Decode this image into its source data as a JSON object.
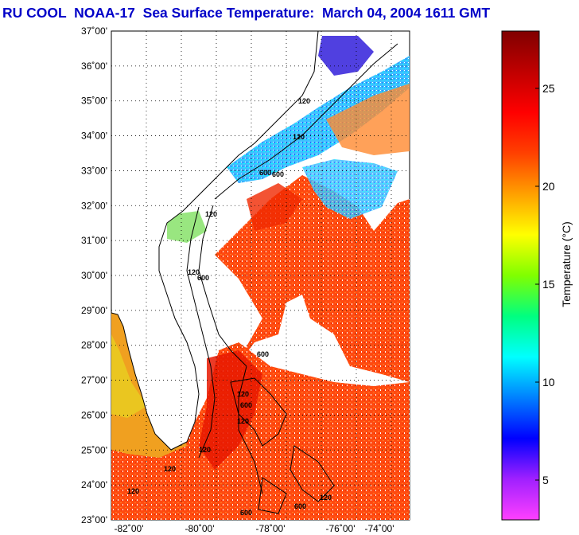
{
  "title": "RU COOL  NOAA-17  Sea Surface Temperature:  March 04, 2004 1611 GMT",
  "title_color": "#0000c8",
  "map": {
    "lat_labels": [
      "37˚00'",
      "36˚00'",
      "35˚00'",
      "34˚00'",
      "33˚00'",
      "32˚00'",
      "31˚00'",
      "30˚00'",
      "29˚00'",
      "28˚00'",
      "27˚00'",
      "26˚00'",
      "25˚00'",
      "24˚00'",
      "23˚00'"
    ],
    "lon_labels": [
      "-82˚00'",
      "-80˚00'",
      "-78˚00'",
      "-76˚00'",
      "-74˚00'"
    ],
    "contour_labels": [
      "120",
      "600",
      "120",
      "600",
      "120",
      "120",
      "600",
      "120",
      "600",
      "600",
      "120",
      "120",
      "120",
      "600",
      "120",
      "600",
      "120"
    ]
  },
  "colorbar": {
    "label": "Temperature (°C)",
    "tick_labels": [
      "25",
      "20",
      "15",
      "10",
      "5"
    ],
    "colors": [
      "#ff40ff",
      "#a020ff",
      "#0000ff",
      "#0080ff",
      "#00ffff",
      "#00ff80",
      "#80ff00",
      "#ffff00",
      "#ffa000",
      "#ff4000",
      "#ff0000",
      "#c00000",
      "#800000"
    ]
  }
}
